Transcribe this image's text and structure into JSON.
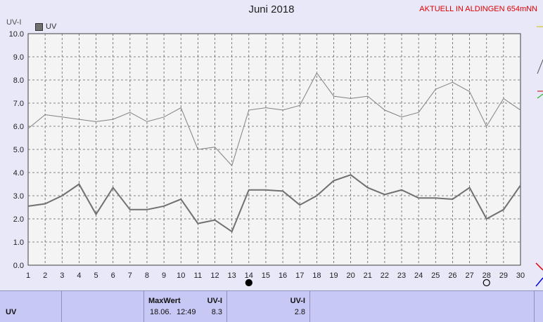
{
  "header": {
    "title": "Juni 2018",
    "subtitle": "AKTUELL IN ALDINGEN 654mNN",
    "ylabel": "UV-I"
  },
  "legend": {
    "label": "UV",
    "color": "#707070"
  },
  "chart_data": {
    "type": "line",
    "title": "Juni 2018",
    "ylabel": "UV-I",
    "xlabel": "",
    "x": [
      1,
      2,
      3,
      4,
      5,
      6,
      7,
      8,
      9,
      10,
      11,
      12,
      13,
      14,
      15,
      16,
      17,
      18,
      19,
      20,
      21,
      22,
      23,
      24,
      25,
      26,
      27,
      28,
      29,
      30
    ],
    "xlim": [
      1,
      30
    ],
    "ylim": [
      0,
      10
    ],
    "yticks": [
      "0.0",
      "1.0",
      "2.0",
      "3.0",
      "4.0",
      "5.0",
      "6.0",
      "7.0",
      "8.0",
      "9.0",
      "10.0"
    ],
    "grid": true,
    "series": [
      {
        "name": "UV",
        "color": "#707070",
        "values": [
          2.55,
          2.65,
          3.0,
          3.5,
          2.2,
          3.35,
          2.4,
          2.4,
          2.55,
          2.85,
          1.8,
          1.95,
          1.45,
          3.25,
          3.25,
          3.2,
          2.6,
          3.0,
          3.65,
          3.9,
          3.35,
          3.05,
          3.25,
          2.9,
          2.9,
          2.85,
          3.35,
          2.0,
          2.4,
          3.45
        ]
      },
      {
        "color": "#808080",
        "values": [
          5.9,
          6.5,
          6.4,
          6.3,
          6.2,
          6.3,
          6.6,
          6.2,
          6.4,
          6.8,
          5.0,
          5.1,
          4.3,
          6.7,
          6.8,
          6.7,
          6.9,
          8.3,
          7.3,
          7.2,
          7.3,
          6.7,
          6.4,
          6.6,
          7.6,
          7.9,
          7.5,
          6.0,
          7.2,
          6.7
        ]
      }
    ],
    "markers": [
      {
        "x": 14,
        "type": "new-moon"
      },
      {
        "x": 28,
        "type": "full-moon"
      }
    ]
  },
  "summary": {
    "row_label": "UV",
    "max_label": "MaxWert",
    "max_unit": "UV-I",
    "max_date": "18.06.",
    "max_time": "12:49",
    "max_value": "8.3",
    "avg_unit": "UV-I",
    "avg_value": "2.8"
  }
}
